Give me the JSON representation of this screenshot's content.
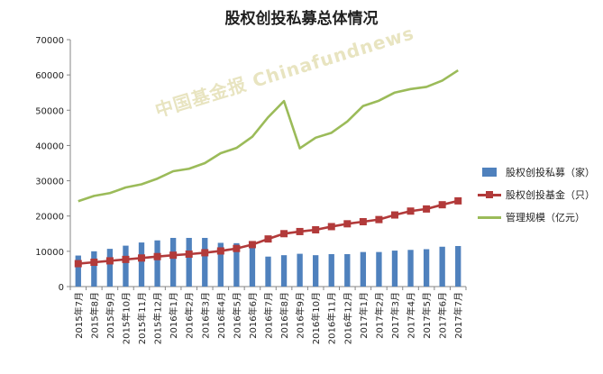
{
  "chart_data": {
    "type": "bar",
    "title": "股权创投私募总体情况",
    "categories": [
      "2015年7月",
      "2015年8月",
      "2015年9月",
      "2015年10月",
      "2015年11月",
      "2015年12月",
      "2016年1月",
      "2016年2月",
      "2016年3月",
      "2016年4月",
      "2016年5月",
      "2016年6月",
      "2016年7月",
      "2016年8月",
      "2016年9月",
      "2016年10月",
      "2016年11月",
      "2016年12月",
      "2017年1月",
      "2017年2月",
      "2017年3月",
      "2017年4月",
      "2017年5月",
      "2017年6月",
      "2017年7月"
    ],
    "ylim": [
      0,
      70000
    ],
    "yticks": [
      "0",
      "10000",
      "20000",
      "30000",
      "40000",
      "50000",
      "60000",
      "70000"
    ],
    "ytick_values": [
      0,
      10000,
      20000,
      30000,
      40000,
      50000,
      60000,
      70000
    ],
    "grid": false,
    "legend_position": "right",
    "series": [
      {
        "name": "股权创投私募（家）",
        "type": "bar",
        "color": "#4f81bd",
        "values": [
          8800,
          10000,
          10700,
          11600,
          12500,
          13100,
          13800,
          13800,
          13800,
          12400,
          12300,
          11400,
          8500,
          8900,
          9300,
          8900,
          9200,
          9200,
          9800,
          9800,
          10200,
          10400,
          10600,
          11300,
          11500
        ]
      },
      {
        "name": "股权创投基金（只）",
        "type": "line",
        "color": "#b23a3a",
        "marker": "square",
        "values": [
          6500,
          6900,
          7300,
          7700,
          8100,
          8500,
          8900,
          9200,
          9600,
          10100,
          10800,
          11900,
          13500,
          15000,
          15600,
          16100,
          17000,
          17800,
          18400,
          19000,
          20300,
          21400,
          22000,
          23200,
          24300
        ]
      },
      {
        "name": "管理规模（亿元）",
        "type": "line",
        "color": "#9bbb59",
        "values": [
          24200,
          25700,
          26500,
          28100,
          29000,
          30600,
          32700,
          33400,
          35000,
          37800,
          39300,
          42500,
          48000,
          52600,
          39200,
          42200,
          43600,
          46800,
          51200,
          52700,
          55000,
          56000,
          56600,
          58400,
          61300
        ]
      }
    ]
  },
  "watermark": "中国基金报 Chinafundnews",
  "colors": {
    "axis": "#868686",
    "text": "#222222"
  }
}
